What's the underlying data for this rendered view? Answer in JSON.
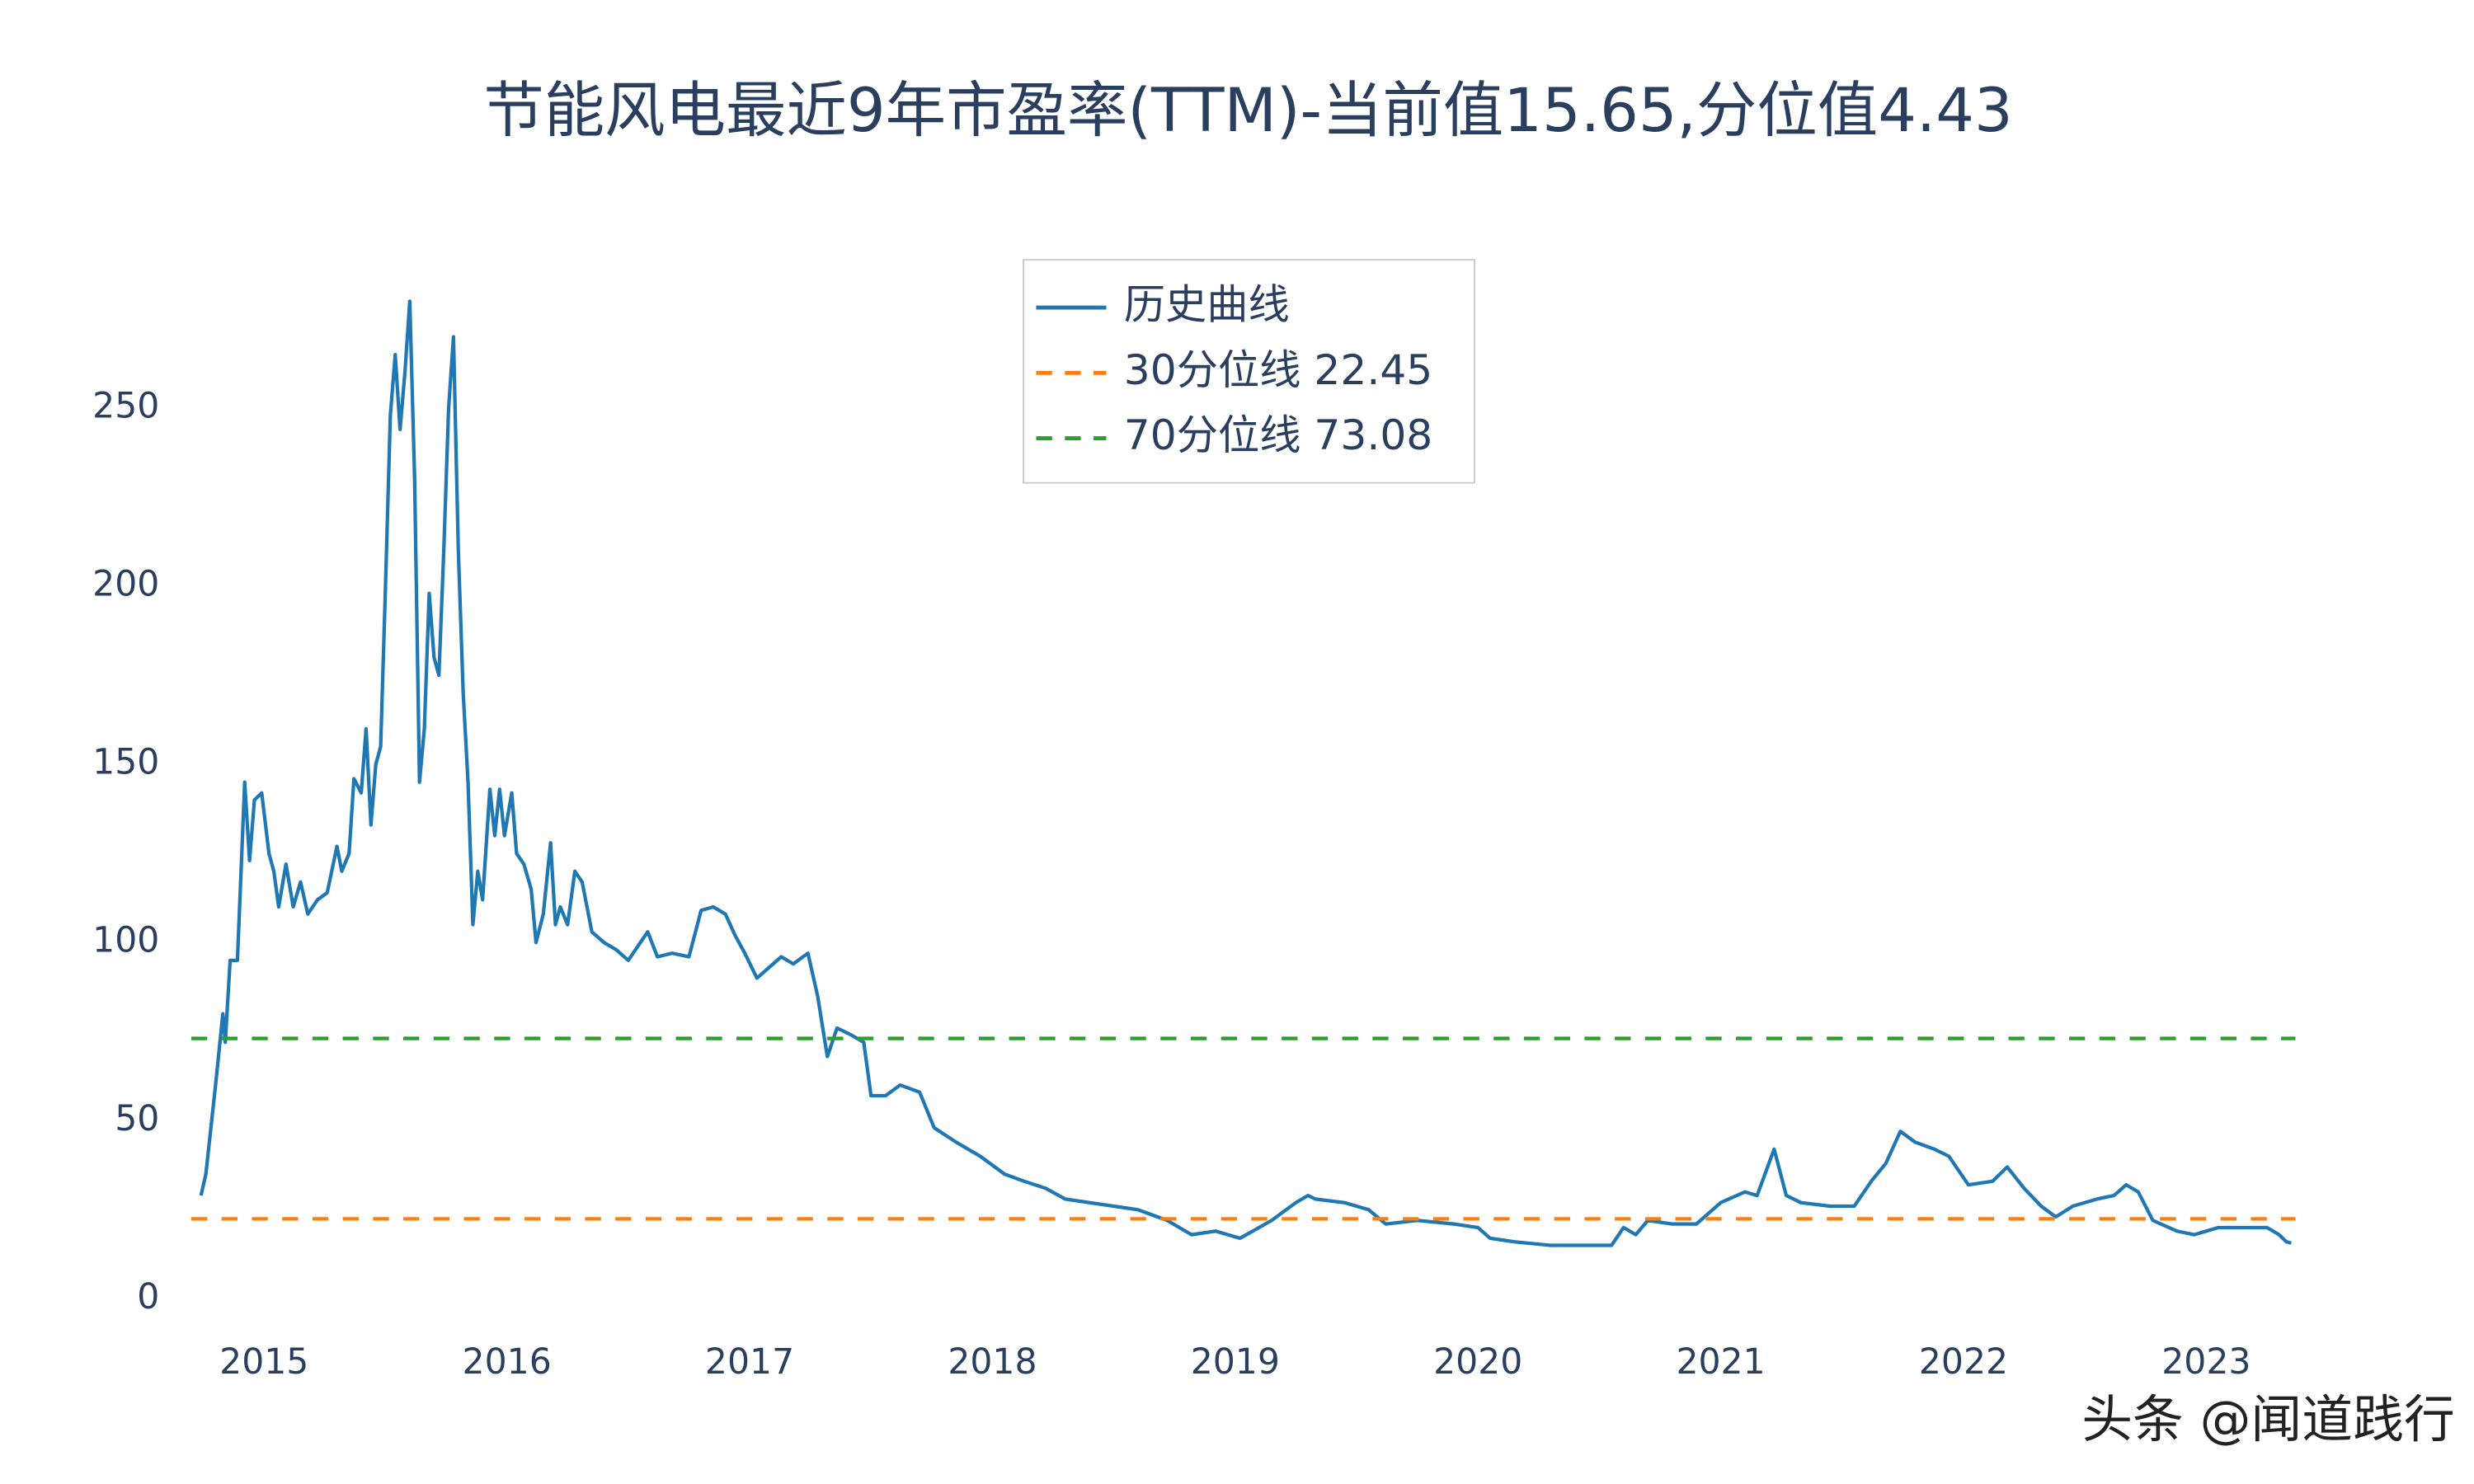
{
  "chart_data": {
    "type": "line",
    "title": "节能风电最近9年市盈率(TTM)-当前值15.65,分位值4.43",
    "watermark": "头条 @闻道践行",
    "xlim": [
      2014.7,
      2023.42
    ],
    "xticks": [
      2015,
      2016,
      2017,
      2018,
      2019,
      2020,
      2021,
      2022,
      2023
    ],
    "ylim": [
      0,
      280
    ],
    "yticks": [
      0,
      50,
      100,
      150,
      200,
      250
    ],
    "grid": false,
    "legend": "top",
    "series": [
      {
        "name": "历史曲线",
        "color": "#1f77b4",
        "x": [
          2014.74,
          2014.76,
          2014.8,
          2014.83,
          2014.84,
          2014.86,
          2014.89,
          2014.92,
          2014.94,
          2014.96,
          2014.99,
          2015.02,
          2015.04,
          2015.06,
          2015.09,
          2015.12,
          2015.15,
          2015.18,
          2015.22,
          2015.26,
          2015.3,
          2015.32,
          2015.35,
          2015.37,
          2015.4,
          2015.42,
          2015.44,
          2015.46,
          2015.48,
          2015.5,
          2015.52,
          2015.54,
          2015.56,
          2015.58,
          2015.6,
          2015.62,
          2015.64,
          2015.66,
          2015.68,
          2015.7,
          2015.72,
          2015.74,
          2015.76,
          2015.78,
          2015.8,
          2015.82,
          2015.84,
          2015.86,
          2015.88,
          2015.9,
          2015.93,
          2015.95,
          2015.97,
          2015.99,
          2016.02,
          2016.04,
          2016.07,
          2016.1,
          2016.12,
          2016.15,
          2016.18,
          2016.2,
          2016.22,
          2016.25,
          2016.28,
          2016.31,
          2016.35,
          2016.4,
          2016.45,
          2016.5,
          2016.55,
          2016.58,
          2016.62,
          2016.68,
          2016.75,
          2016.8,
          2016.85,
          2016.9,
          2016.94,
          2016.98,
          2017.03,
          2017.08,
          2017.13,
          2017.18,
          2017.24,
          2017.28,
          2017.32,
          2017.36,
          2017.42,
          2017.47,
          2017.5,
          2017.56,
          2017.62,
          2017.7,
          2017.76,
          2017.85,
          2017.95,
          2018.05,
          2018.13,
          2018.22,
          2018.3,
          2018.4,
          2018.5,
          2018.6,
          2018.72,
          2018.82,
          2018.92,
          2019.02,
          2019.15,
          2019.25,
          2019.3,
          2019.33,
          2019.45,
          2019.55,
          2019.62,
          2019.75,
          2019.9,
          2020.0,
          2020.05,
          2020.15,
          2020.3,
          2020.45,
          2020.55,
          2020.6,
          2020.65,
          2020.7,
          2020.8,
          2020.9,
          2021.0,
          2021.1,
          2021.15,
          2021.22,
          2021.27,
          2021.33,
          2021.45,
          2021.55,
          2021.62,
          2021.68,
          2021.74,
          2021.8,
          2021.88,
          2021.94,
          2022.02,
          2022.12,
          2022.18,
          2022.25,
          2022.32,
          2022.38,
          2022.45,
          2022.55,
          2022.62,
          2022.67,
          2022.72,
          2022.78,
          2022.88,
          2022.95,
          2023.05,
          2023.15,
          2023.25,
          2023.3,
          2023.33,
          2023.35
        ],
        "values": [
          29,
          35,
          60,
          80,
          72,
          95,
          95,
          145,
          123,
          140,
          142,
          125,
          120,
          110,
          122,
          110,
          117,
          108,
          112,
          114,
          127,
          120,
          125,
          146,
          142,
          160,
          133,
          150,
          155,
          200,
          248,
          265,
          244,
          260,
          280,
          230,
          145,
          160,
          198,
          180,
          175,
          210,
          250,
          270,
          210,
          170,
          145,
          105,
          120,
          112,
          143,
          130,
          143,
          130,
          142,
          125,
          122,
          115,
          100,
          108,
          128,
          105,
          110,
          105,
          120,
          117,
          103,
          100,
          98,
          95,
          100,
          103,
          96,
          97,
          96,
          109,
          110,
          108,
          102,
          97,
          90,
          93,
          96,
          94,
          97,
          85,
          68,
          76,
          74,
          72,
          57,
          57,
          60,
          58,
          48,
          44,
          40,
          35,
          33,
          31,
          28,
          27,
          26,
          25,
          22,
          18,
          19,
          17,
          22,
          27,
          29,
          28,
          27,
          25,
          21,
          22,
          21,
          20,
          17,
          16,
          15,
          15,
          15,
          20,
          18,
          22,
          21,
          21,
          27,
          30,
          29,
          42,
          29,
          27,
          26,
          26,
          33,
          38,
          47,
          44,
          42,
          40,
          32,
          33,
          37,
          31,
          26,
          23,
          26,
          28,
          29,
          32,
          30,
          22,
          19,
          18,
          20,
          20,
          20,
          18,
          16,
          15.65
        ]
      },
      {
        "name": "30分位线 22.45",
        "color": "#ff7f0e",
        "dash": true,
        "value": 22.45
      },
      {
        "name": "70分位线 73.08",
        "color": "#2ca02c",
        "dash": true,
        "value": 73.08
      }
    ]
  }
}
